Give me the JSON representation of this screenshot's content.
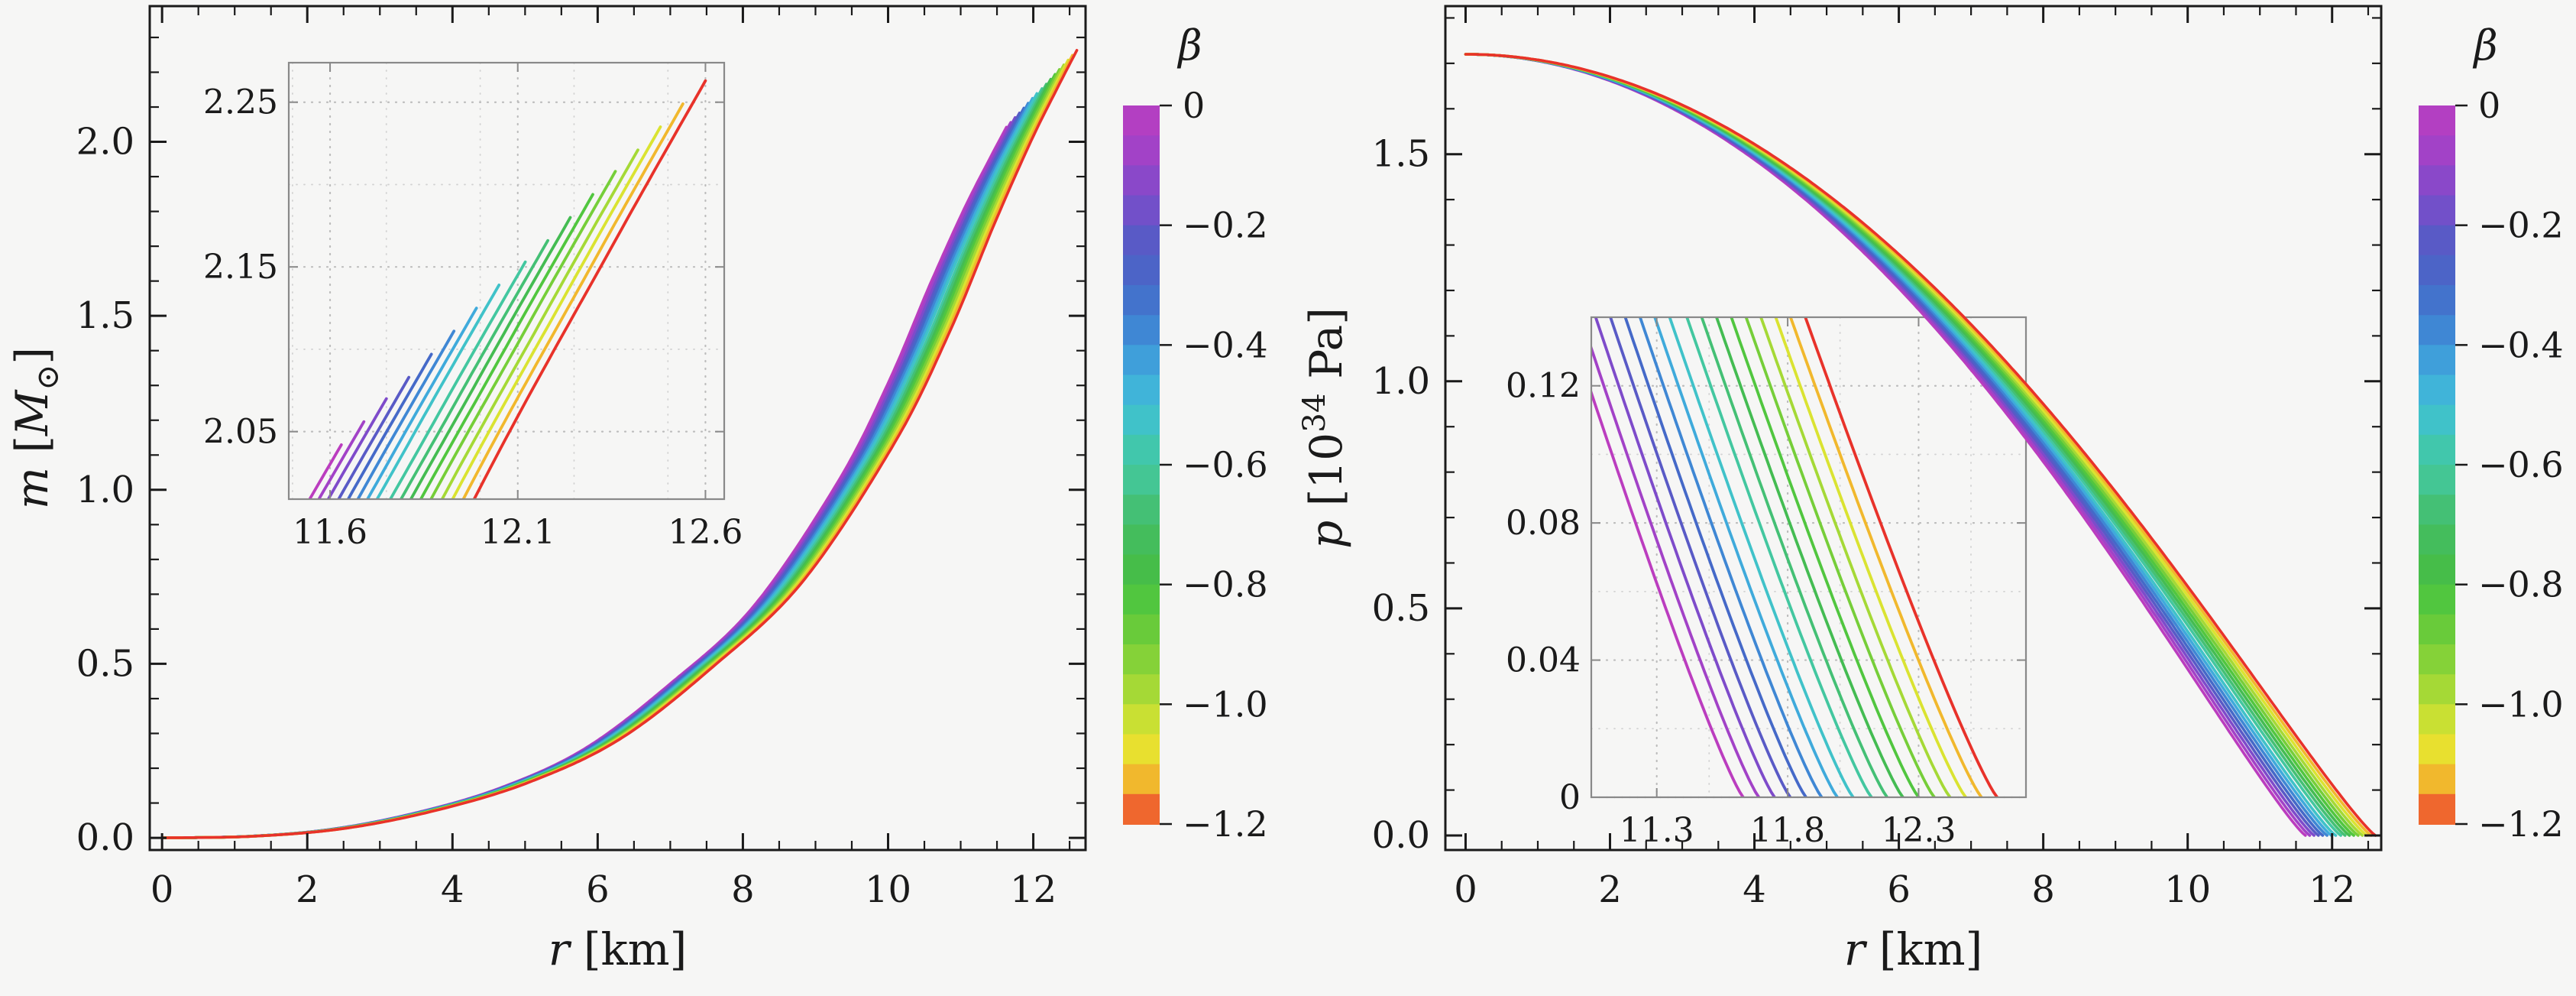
{
  "figure": {
    "background": "#f6f6f5",
    "colors": {
      "frame": "#1a1a1a",
      "tick_label": "#1a1a1a",
      "inset_frame": "#898989",
      "inset_text": "#757575",
      "grid_major": "#bcbcbc",
      "grid_minor": "#d2d2d2"
    },
    "colorbar": {
      "title": "β",
      "tick_labels": [
        "0",
        "−0.2",
        "−0.4",
        "−0.6",
        "−0.8",
        "−1.0",
        "−1.2"
      ],
      "tick_values": [
        0,
        -0.2,
        -0.4,
        -0.6,
        -0.8,
        -1.0,
        -1.2
      ],
      "range": [
        0,
        -1.2
      ],
      "n_cells": 24,
      "gradient_stops": [
        [
          0.0,
          "#bb3dbf"
        ],
        [
          0.06,
          "#a342c7"
        ],
        [
          0.13,
          "#7b4cca"
        ],
        [
          0.19,
          "#585bc6"
        ],
        [
          0.25,
          "#4569c8"
        ],
        [
          0.31,
          "#3f86d4"
        ],
        [
          0.37,
          "#3fa8dc"
        ],
        [
          0.42,
          "#40bfd6"
        ],
        [
          0.47,
          "#41c7b2"
        ],
        [
          0.53,
          "#44c68e"
        ],
        [
          0.58,
          "#44bd68"
        ],
        [
          0.64,
          "#44bc4a"
        ],
        [
          0.69,
          "#52c63e"
        ],
        [
          0.74,
          "#6fcc39"
        ],
        [
          0.8,
          "#9ad737"
        ],
        [
          0.85,
          "#c6e033"
        ],
        [
          0.89,
          "#e6e42f"
        ],
        [
          0.92,
          "#efcf2e"
        ],
        [
          0.95,
          "#f2a82d"
        ],
        [
          0.975,
          "#f0722f"
        ],
        [
          1.0,
          "#e8322a"
        ]
      ]
    }
  },
  "chart_data": [
    {
      "id": "mass-profile",
      "type": "line",
      "title": "",
      "xlabel": "r [km]",
      "ylabel": "m [M_sun]",
      "xlabel_parts": [
        {
          "text": "r",
          "italic": true
        },
        {
          "text": " [km]"
        }
      ],
      "ylabel_parts": [
        {
          "text": "m",
          "italic": true
        },
        {
          "text": " ["
        },
        {
          "text": "M",
          "italic": true
        },
        {
          "text": "⊙",
          "shift": "sub"
        },
        {
          "text": "]"
        }
      ],
      "xlim": [
        -0.17,
        12.72
      ],
      "ylim": [
        -0.035,
        2.39
      ],
      "xticks": {
        "values": [
          0,
          2,
          4,
          6,
          8,
          10,
          12
        ],
        "labels": [
          "0",
          "2",
          "4",
          "6",
          "8",
          "10",
          "12"
        ],
        "minor_step": 0.5
      },
      "yticks": {
        "values": [
          0,
          0.5,
          1,
          1.5,
          2
        ],
        "labels": [
          "0.0",
          "0.5",
          "1.0",
          "1.5",
          "2.0"
        ],
        "minor_step": 0.1
      },
      "series_param": "beta",
      "profile_shape": {
        "kind": "spline",
        "points": [
          [
            0,
            0
          ],
          [
            0.1,
            0.002
          ],
          [
            0.2,
            0.012
          ],
          [
            0.3,
            0.035
          ],
          [
            0.4,
            0.07
          ],
          [
            0.5,
            0.125
          ],
          [
            0.6,
            0.215
          ],
          [
            0.7,
            0.325
          ],
          [
            0.8,
            0.5
          ],
          [
            0.86,
            0.64
          ],
          [
            0.91,
            0.78
          ],
          [
            0.95,
            0.885
          ],
          [
            0.98,
            0.955
          ],
          [
            1,
            1
          ]
        ]
      },
      "series": [
        {
          "beta": 0,
          "R_km": 11.63,
          "M_msun": 2.042
        },
        {
          "beta": -0.075,
          "R_km": 11.69,
          "M_msun": 2.056
        },
        {
          "beta": -0.15,
          "R_km": 11.75,
          "M_msun": 2.07
        },
        {
          "beta": -0.225,
          "R_km": 11.81,
          "M_msun": 2.083
        },
        {
          "beta": -0.3,
          "R_km": 11.87,
          "M_msun": 2.097
        },
        {
          "beta": -0.375,
          "R_km": 11.93,
          "M_msun": 2.111
        },
        {
          "beta": -0.45,
          "R_km": 11.99,
          "M_msun": 2.125
        },
        {
          "beta": -0.525,
          "R_km": 12.05,
          "M_msun": 2.139
        },
        {
          "beta": -0.6,
          "R_km": 12.12,
          "M_msun": 2.153
        },
        {
          "beta": -0.675,
          "R_km": 12.18,
          "M_msun": 2.166
        },
        {
          "beta": -0.75,
          "R_km": 12.24,
          "M_msun": 2.18
        },
        {
          "beta": -0.825,
          "R_km": 12.3,
          "M_msun": 2.194
        },
        {
          "beta": -0.9,
          "R_km": 12.36,
          "M_msun": 2.208
        },
        {
          "beta": -0.975,
          "R_km": 12.42,
          "M_msun": 2.221
        },
        {
          "beta": -1.05,
          "R_km": 12.48,
          "M_msun": 2.235
        },
        {
          "beta": -1.125,
          "R_km": 12.54,
          "M_msun": 2.249
        },
        {
          "beta": -1.2,
          "R_km": 12.6,
          "M_msun": 2.263
        }
      ],
      "inset": {
        "xlim": [
          11.49,
          12.65
        ],
        "ylim": [
          2.009,
          2.274
        ],
        "xticks": {
          "values": [
            11.6,
            12.1,
            12.6
          ],
          "labels": [
            "11.6",
            "12.1",
            "12.6"
          ],
          "minor_step": 0.25
        },
        "yticks": {
          "values": [
            2.05,
            2.15,
            2.25
          ],
          "labels": [
            "2.05",
            "2.15",
            "2.25"
          ],
          "minor_step": 0.05
        }
      }
    },
    {
      "id": "pressure-profile",
      "type": "line",
      "title": "",
      "xlabel": "r [km]",
      "ylabel": "p [10^34 Pa]",
      "xlabel_parts": [
        {
          "text": "r",
          "italic": true
        },
        {
          "text": " [km]"
        }
      ],
      "ylabel_parts": [
        {
          "text": "p",
          "italic": true
        },
        {
          "text": " [10"
        },
        {
          "text": "34",
          "shift": "sup"
        },
        {
          "text": " Pa]"
        }
      ],
      "xlim": [
        -0.28,
        12.68
      ],
      "ylim": [
        -0.032,
        1.826
      ],
      "xticks": {
        "values": [
          0,
          2,
          4,
          6,
          8,
          10,
          12
        ],
        "labels": [
          "0",
          "2",
          "4",
          "6",
          "8",
          "10",
          "12"
        ],
        "minor_step": 0.5
      },
      "yticks": {
        "values": [
          0,
          0.5,
          1,
          1.5
        ],
        "labels": [
          "0.0",
          "0.5",
          "1.0",
          "1.5"
        ],
        "minor_step": 0.1
      },
      "series_param": "beta",
      "profile_shape": {
        "kind": "power",
        "exponent": 1.15
      },
      "p_central_1e34Pa": 1.72,
      "series": [
        {
          "beta": 0,
          "R_km": 11.63,
          "p_c_1e34Pa": 1.72
        },
        {
          "beta": -0.075,
          "R_km": 11.69,
          "p_c_1e34Pa": 1.72
        },
        {
          "beta": -0.15,
          "R_km": 11.75,
          "p_c_1e34Pa": 1.72
        },
        {
          "beta": -0.225,
          "R_km": 11.81,
          "p_c_1e34Pa": 1.72
        },
        {
          "beta": -0.3,
          "R_km": 11.87,
          "p_c_1e34Pa": 1.72
        },
        {
          "beta": -0.375,
          "R_km": 11.93,
          "p_c_1e34Pa": 1.72
        },
        {
          "beta": -0.45,
          "R_km": 11.99,
          "p_c_1e34Pa": 1.72
        },
        {
          "beta": -0.525,
          "R_km": 12.05,
          "p_c_1e34Pa": 1.72
        },
        {
          "beta": -0.6,
          "R_km": 12.12,
          "p_c_1e34Pa": 1.72
        },
        {
          "beta": -0.675,
          "R_km": 12.18,
          "p_c_1e34Pa": 1.72
        },
        {
          "beta": -0.75,
          "R_km": 12.24,
          "p_c_1e34Pa": 1.72
        },
        {
          "beta": -0.825,
          "R_km": 12.3,
          "p_c_1e34Pa": 1.72
        },
        {
          "beta": -0.9,
          "R_km": 12.36,
          "p_c_1e34Pa": 1.72
        },
        {
          "beta": -0.975,
          "R_km": 12.42,
          "p_c_1e34Pa": 1.72
        },
        {
          "beta": -1.05,
          "R_km": 12.48,
          "p_c_1e34Pa": 1.72
        },
        {
          "beta": -1.125,
          "R_km": 12.54,
          "p_c_1e34Pa": 1.72
        },
        {
          "beta": -1.2,
          "R_km": 12.6,
          "p_c_1e34Pa": 1.72
        }
      ],
      "inset": {
        "xlim": [
          11.05,
          12.71
        ],
        "ylim": [
          0,
          0.14
        ],
        "xticks": {
          "values": [
            11.3,
            11.8,
            12.3
          ],
          "labels": [
            "11.3",
            "11.8",
            "12.3"
          ],
          "minor_step": 0.25
        },
        "yticks": {
          "values": [
            0,
            0.04,
            0.08,
            0.12
          ],
          "labels": [
            "0",
            "0.04",
            "0.08",
            "0.12"
          ],
          "minor_step": 0.02
        }
      }
    }
  ]
}
